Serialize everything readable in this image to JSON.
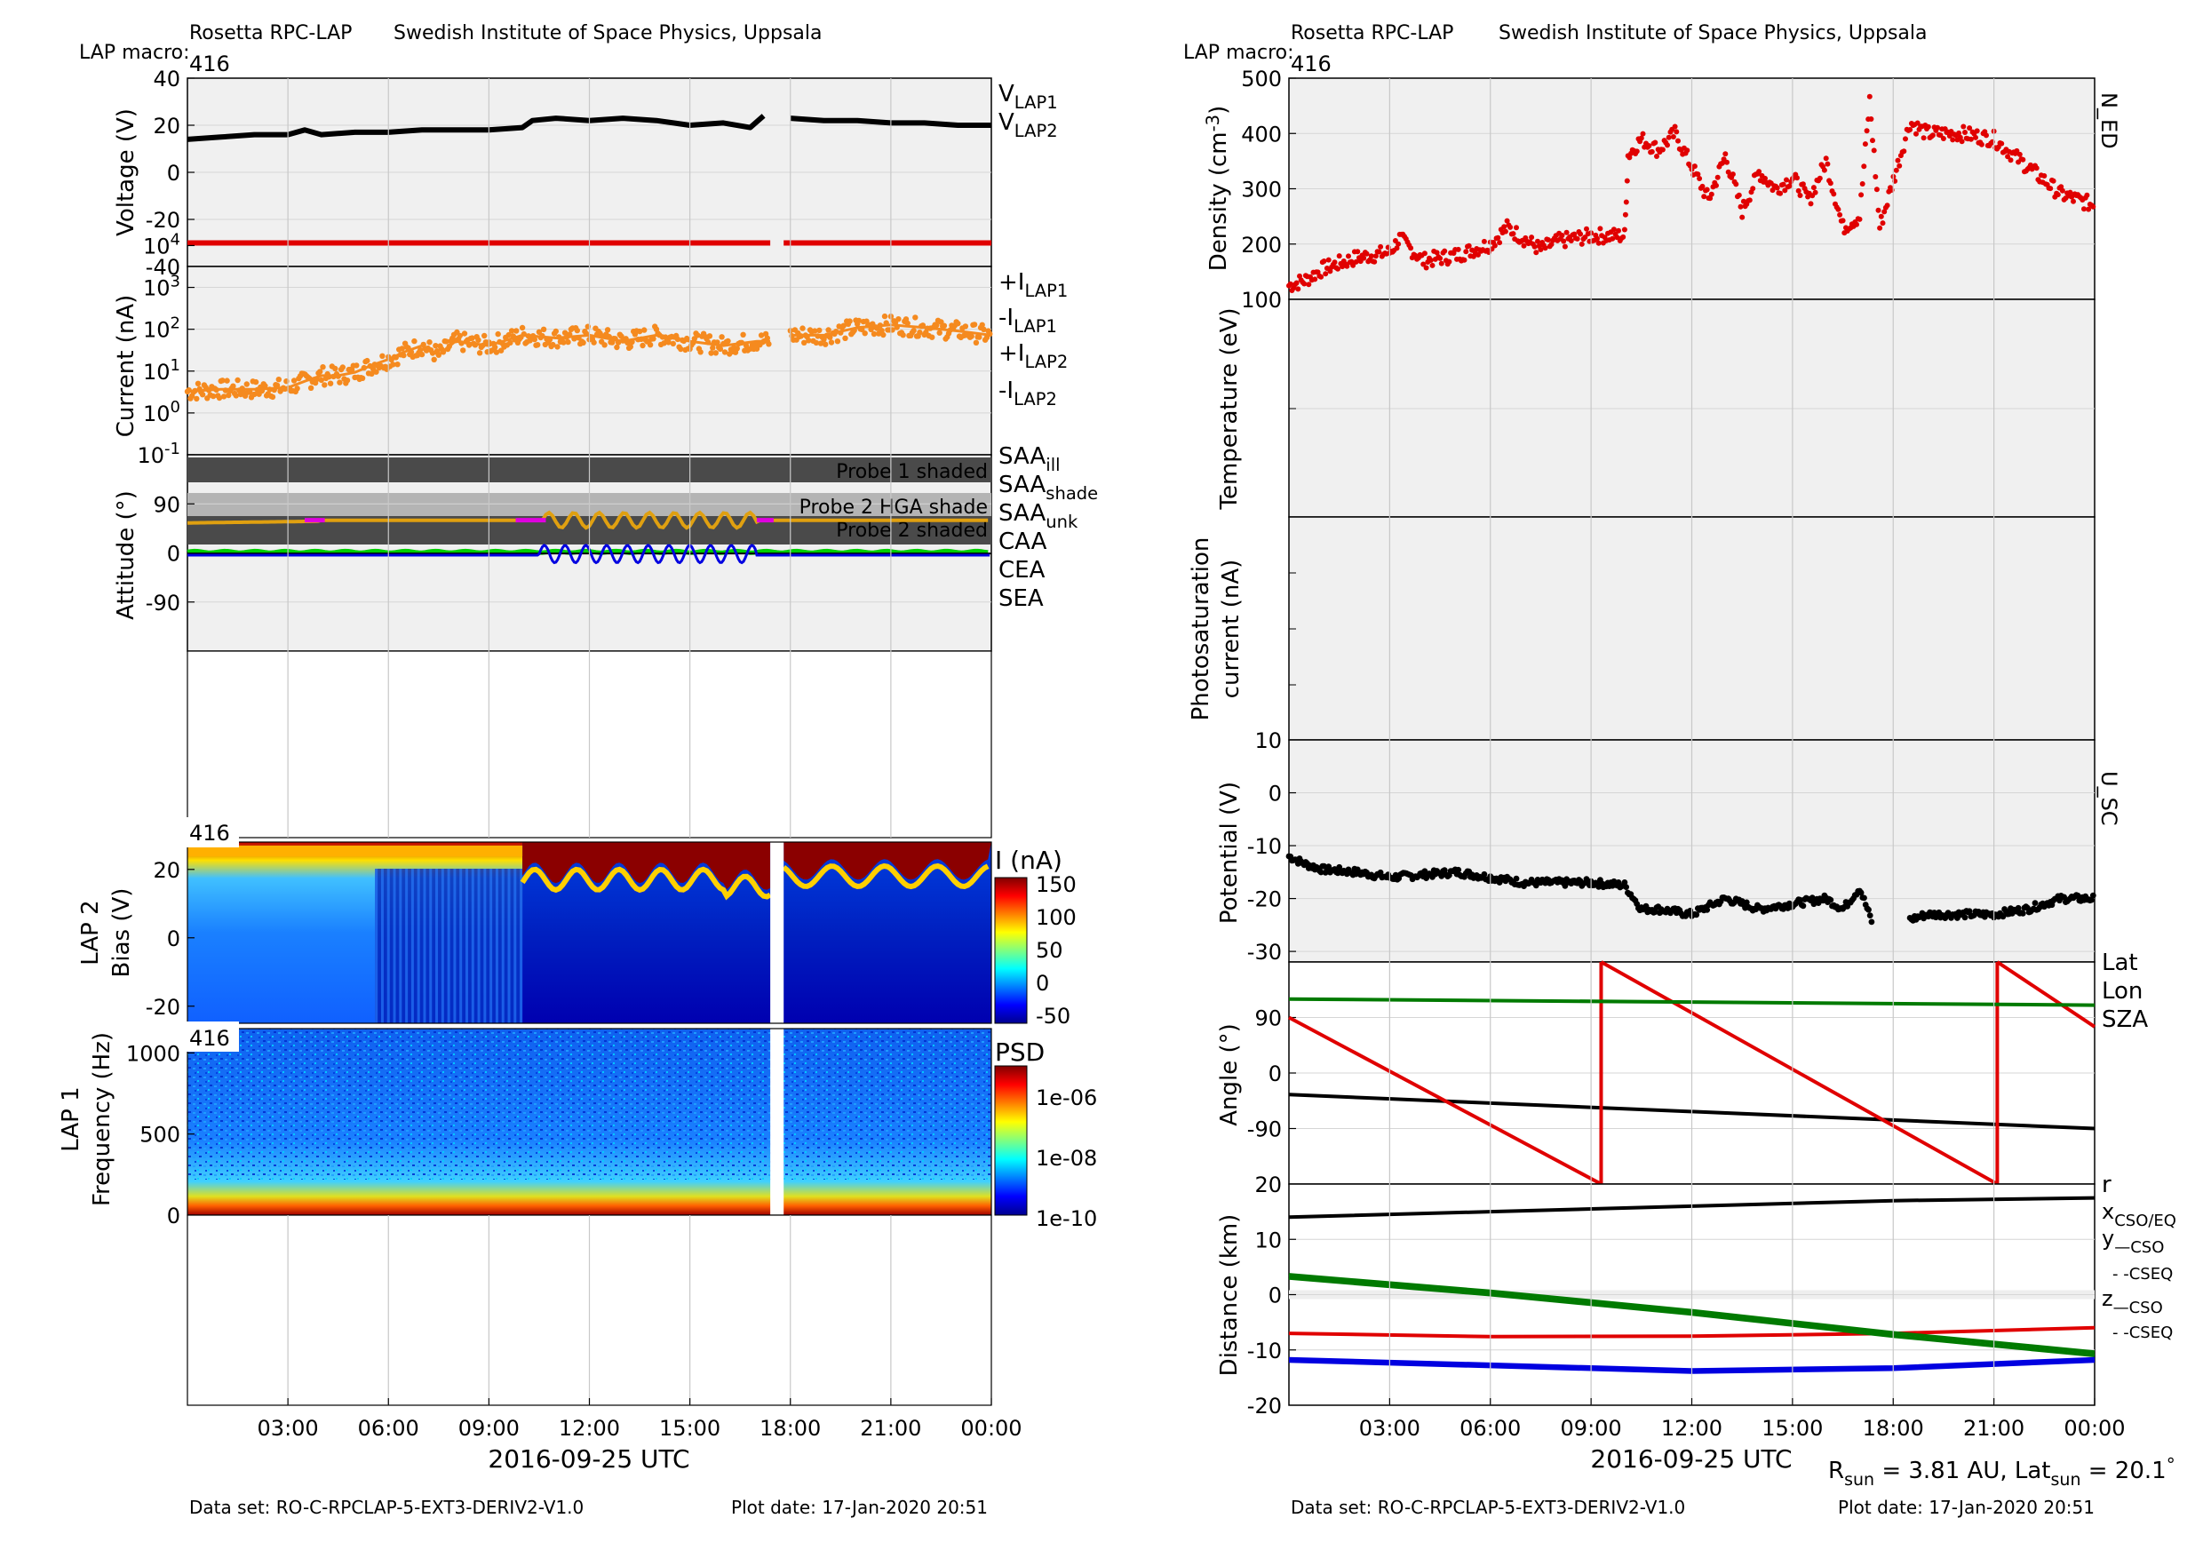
{
  "colors": {
    "black": "#000000",
    "red": "#e00000",
    "orange": "#f58a1f",
    "gray": "#888888",
    "yellow": "#e0a010",
    "magenta": "#e000e0",
    "blue": "#0000e0",
    "green": "#00cc00",
    "dkgreen": "#007a00",
    "panel_bg": "#f0f0f0",
    "shade_dark": "#4a4a4a",
    "shade_light": "#b4b4b4"
  },
  "left": {
    "header": {
      "instrument": "Rosetta RPC-LAP",
      "institute": "Swedish Institute of Space Physics, Uppsala",
      "macro_label": "LAP macro:",
      "macro_value": "416"
    },
    "voltage_panel": {
      "ylabel": "Voltage (V)",
      "yticks": [
        "40",
        "20",
        "0",
        "-20",
        "-40"
      ],
      "legend": [
        {
          "main": "V",
          "sub": "LAP1",
          "color": "black"
        },
        {
          "main": "V",
          "sub": "LAP2",
          "color": "red"
        }
      ]
    },
    "current_panel": {
      "ylabel": "Current (nA)",
      "ytick_base": "10",
      "ytick_exps": [
        "4",
        "3",
        "2",
        "1",
        "0",
        "-1"
      ],
      "legend": [
        {
          "main": "+I",
          "sub": "LAP1",
          "color": "black"
        },
        {
          "main": "-I",
          "sub": "LAP1",
          "color": "gray"
        },
        {
          "main": "+I",
          "sub": "LAP2",
          "color": "red"
        },
        {
          "main": "-I",
          "sub": "LAP2",
          "color": "orange"
        }
      ]
    },
    "attitude_panel": {
      "ylabel": "Attitude (°)",
      "yticks": [
        "90",
        "0",
        "-90"
      ],
      "shade_labels": [
        "Probe 1 shaded",
        "Probe 2 HGA shade",
        "Probe 2 shaded"
      ],
      "legend": [
        {
          "main": "SAA",
          "sub": "ill",
          "color": "red"
        },
        {
          "main": "SAA",
          "sub": "shade",
          "color": "yellow"
        },
        {
          "main": "SAA",
          "sub": "unk",
          "color": "magenta"
        },
        {
          "main": "CAA",
          "sub": "",
          "color": "blue"
        },
        {
          "main": "CEA",
          "sub": "",
          "color": "green"
        },
        {
          "main": "SEA",
          "sub": "",
          "color": "black"
        }
      ]
    },
    "bias_panel": {
      "tag": "416",
      "ylabel1": "LAP 2",
      "ylabel2": "Bias (V)",
      "yticks": [
        "20",
        "0",
        "-20"
      ],
      "colorbar_title": "I (nA)",
      "colorbar_ticks": [
        "150",
        "100",
        "50",
        "0",
        "-50"
      ]
    },
    "freq_panel": {
      "tag": "416",
      "ylabel1": "LAP 1",
      "ylabel2": "Frequency (Hz)",
      "yticks": [
        "1000",
        "500",
        "0"
      ],
      "colorbar_title": "PSD",
      "colorbar_ticks": [
        "1e-06",
        "1e-08",
        "1e-10"
      ]
    },
    "xticks": [
      "03:00",
      "06:00",
      "09:00",
      "12:00",
      "15:00",
      "18:00",
      "21:00",
      "00:00"
    ],
    "xlabel": "2016-09-25 UTC",
    "footer": {
      "dataset": "Data set: RO-C-RPCLAP-5-EXT3-DERIV2-V1.0",
      "plotdate": "Plot date: 17-Jan-2020 20:51"
    }
  },
  "right": {
    "header": {
      "instrument": "Rosetta RPC-LAP",
      "institute": "Swedish Institute of Space Physics, Uppsala",
      "macro_label": "LAP macro:",
      "macro_value": "416"
    },
    "density_panel": {
      "ylabel_main": "Density (cm",
      "ylabel_exp": "-3",
      "ylabel_end": ")",
      "yticks": [
        "500",
        "400",
        "300",
        "200",
        "100"
      ],
      "side_label": "N_ED"
    },
    "temperature_panel": {
      "ylabel": "Temperature (eV)"
    },
    "photo_panel": {
      "ylabel1": "Photosaturation",
      "ylabel2": "current (nA)",
      "bottom_tick": "10"
    },
    "potential_panel": {
      "ylabel": "Potential (V)",
      "yticks": [
        "0",
        "-10",
        "-20",
        "-30"
      ],
      "side_label": "U_SC"
    },
    "angle_panel": {
      "ylabel": "Angle (°)",
      "yticks": [
        "90",
        "0",
        "-90"
      ],
      "legend": [
        {
          "label": "Lat",
          "color": "black"
        },
        {
          "label": "Lon",
          "color": "red"
        },
        {
          "label": "SZA",
          "color": "dkgreen"
        }
      ]
    },
    "distance_panel": {
      "ylabel": "Distance (km)",
      "yticks": [
        "20",
        "10",
        "0",
        "-10",
        "-20"
      ],
      "legend_r": "r",
      "legend_x": "x",
      "legend_x_sub": "CSO/EQ",
      "legend_y": "y",
      "legend_y_sub": "—CSO",
      "legend_y_sub2": "- -CSEQ",
      "legend_z": "z",
      "legend_z_sub": "—CSO",
      "legend_z_sub2": "- -CSEQ"
    },
    "xticks": [
      "03:00",
      "06:00",
      "09:00",
      "12:00",
      "15:00",
      "18:00",
      "21:00",
      "00:00"
    ],
    "xlabel": "2016-09-25 UTC",
    "rsun_text": "R",
    "rsun_sub": "sun",
    "rsun_value": " = 3.81 AU, Lat",
    "lat_sub": "sun",
    "lat_value": " = 20.1",
    "lat_deg": "°",
    "footer": {
      "dataset": "Data set: RO-C-RPCLAP-5-EXT3-DERIV2-V1.0",
      "plotdate": "Plot date: 17-Jan-2020 20:51"
    }
  },
  "chart_data": [
    {
      "type": "scatter",
      "panel": "voltage",
      "xlabel": "2016-09-25 UTC",
      "ylabel": "Voltage (V)",
      "ylim": [
        -40,
        40
      ],
      "x_hours_range": [
        0,
        24
      ],
      "series": [
        {
          "name": "V_LAP1",
          "color": "black",
          "x": [
            0,
            1,
            2,
            3,
            3.5,
            4,
            5,
            6,
            7,
            8,
            9,
            10,
            10.3,
            11,
            12,
            13,
            14,
            15,
            16,
            16.8,
            17.2,
            17.8,
            18,
            19,
            20,
            21,
            22,
            23,
            24
          ],
          "y": [
            14,
            15,
            16,
            16,
            18,
            16,
            17,
            17,
            18,
            18,
            18,
            19,
            22,
            23,
            22,
            23,
            22,
            20,
            21,
            19,
            24,
            null,
            23,
            22,
            22,
            21,
            21,
            20,
            20
          ]
        },
        {
          "name": "V_LAP2",
          "color": "red",
          "x": [
            0,
            17.4,
            17.4,
            17.8,
            24
          ],
          "y": [
            -30,
            -30,
            null,
            -30,
            -30
          ]
        }
      ]
    },
    {
      "type": "scatter",
      "panel": "current",
      "ylabel": "Current (nA)",
      "yscale": "log",
      "ylim": [
        0.1,
        30000
      ],
      "series": [
        {
          "name": "-I_LAP2",
          "color": "orange",
          "x": [
            0,
            1,
            2,
            3,
            3.6,
            4,
            4.5,
            5,
            5.5,
            6,
            6.5,
            7,
            7.5,
            8,
            9,
            10,
            11,
            12,
            13,
            14,
            15,
            16,
            17,
            17.4,
            17.8,
            18,
            19,
            20,
            21,
            22,
            23,
            24
          ],
          "y": [
            7,
            8,
            8,
            9,
            15,
            20,
            20,
            25,
            40,
            60,
            100,
            150,
            80,
            200,
            150,
            300,
            250,
            300,
            200,
            300,
            200,
            150,
            200,
            200,
            null,
            300,
            300,
            500,
            600,
            500,
            400,
            300
          ]
        }
      ]
    },
    {
      "type": "line",
      "panel": "attitude",
      "ylabel": "Attitude (°)",
      "ylim": [
        -180,
        180
      ],
      "series": [
        {
          "name": "SAA_shade",
          "color": "yellow",
          "note": "around 60 deg with oscillation 10.5–17h"
        },
        {
          "name": "SAA_unk",
          "color": "magenta"
        },
        {
          "name": "CAA",
          "color": "blue"
        },
        {
          "name": "CEA",
          "color": "green"
        },
        {
          "name": "SEA",
          "color": "black"
        }
      ]
    },
    {
      "type": "heatmap",
      "panel": "LAP 2 Bias",
      "ylabel": "Bias (V)",
      "ylim": [
        -25,
        28
      ],
      "colorbar": {
        "title": "I (nA)",
        "range": [
          -50,
          150
        ]
      }
    },
    {
      "type": "heatmap",
      "panel": "LAP 1 Frequency",
      "ylabel": "Frequency (Hz)",
      "ylim": [
        0,
        1150
      ],
      "colorbar": {
        "title": "PSD",
        "range": [
          "1e-10",
          "1e-06"
        ]
      }
    },
    {
      "type": "scatter",
      "panel": "density",
      "ylabel": "Density (cm-3)",
      "ylim": [
        100,
        500
      ],
      "series": [
        {
          "name": "N_ED",
          "color": "red",
          "x": [
            0,
            0.5,
            1,
            2,
            3,
            3.3,
            4,
            5,
            6,
            6.5,
            7,
            7.5,
            8,
            9,
            10,
            10.1,
            10.5,
            11,
            11.5,
            12,
            12.5,
            13,
            13.5,
            14,
            14.5,
            15,
            15.5,
            16,
            16.5,
            17,
            17.3,
            17.6,
            18.5,
            19,
            20,
            21,
            22,
            23,
            24
          ],
          "y": [
            125,
            135,
            155,
            175,
            185,
            210,
            170,
            180,
            200,
            230,
            210,
            190,
            205,
            215,
            215,
            360,
            390,
            370,
            400,
            340,
            280,
            360,
            260,
            330,
            300,
            320,
            280,
            350,
            230,
            250,
            460,
            230,
            420,
            400,
            400,
            390,
            340,
            290,
            270
          ]
        }
      ]
    },
    {
      "type": "scatter",
      "panel": "potential",
      "ylabel": "Potential (V)",
      "ylim": [
        -32,
        10
      ],
      "series": [
        {
          "name": "U_SC",
          "color": "black",
          "x": [
            0,
            0.5,
            1,
            2,
            3,
            4,
            5,
            6,
            7,
            8,
            9,
            10,
            10.5,
            11,
            12,
            13,
            14,
            15,
            16,
            16.5,
            17,
            17.4,
            17.6,
            18.5,
            19,
            20,
            21,
            22,
            23,
            24
          ],
          "y": [
            -12,
            -13.5,
            -14.5,
            -15,
            -16,
            -15.5,
            -15,
            -16,
            -17,
            -17,
            -17,
            -17.5,
            -22,
            -22,
            -23,
            -20,
            -22,
            -21,
            -20,
            -22,
            -18,
            -25,
            null,
            -24,
            -23,
            -23,
            -23,
            -22,
            -20,
            -20
          ]
        }
      ]
    },
    {
      "type": "line",
      "panel": "angle",
      "ylabel": "Angle (°)",
      "ylim": [
        -180,
        180
      ],
      "series": [
        {
          "name": "Lat",
          "color": "black",
          "x": [
            0,
            24
          ],
          "y": [
            -35,
            -90
          ]
        },
        {
          "name": "Lon",
          "color": "red",
          "x": [
            0,
            9.3,
            9.3,
            21.1,
            21.1,
            24
          ],
          "y": [
            90,
            -180,
            180,
            -180,
            180,
            75
          ]
        },
        {
          "name": "SZA",
          "color": "dkgreen",
          "x": [
            0,
            24
          ],
          "y": [
            120,
            110
          ]
        }
      ]
    },
    {
      "type": "line",
      "panel": "distance",
      "ylabel": "Distance (km)",
      "ylim": [
        -20,
        20
      ],
      "series": [
        {
          "name": "r",
          "color": "black",
          "x": [
            0,
            6,
            12,
            18,
            24
          ],
          "y": [
            14,
            15,
            16,
            17,
            17.5
          ]
        },
        {
          "name": "x_CSO/EQ",
          "color": "red",
          "x": [
            0,
            6,
            12,
            18,
            24
          ],
          "y": [
            -7,
            -7.6,
            -7.5,
            -7,
            -6
          ]
        },
        {
          "name": "y_CSO",
          "color": "dkgreen",
          "x": [
            0,
            6,
            12,
            18,
            24
          ],
          "y": [
            3,
            0,
            -3.5,
            -7.5,
            -11
          ]
        },
        {
          "name": "z_CSO",
          "color": "blue",
          "x": [
            0,
            6,
            12,
            18,
            24
          ],
          "y": [
            -12,
            -13,
            -14,
            -13.5,
            -12
          ]
        }
      ]
    }
  ]
}
